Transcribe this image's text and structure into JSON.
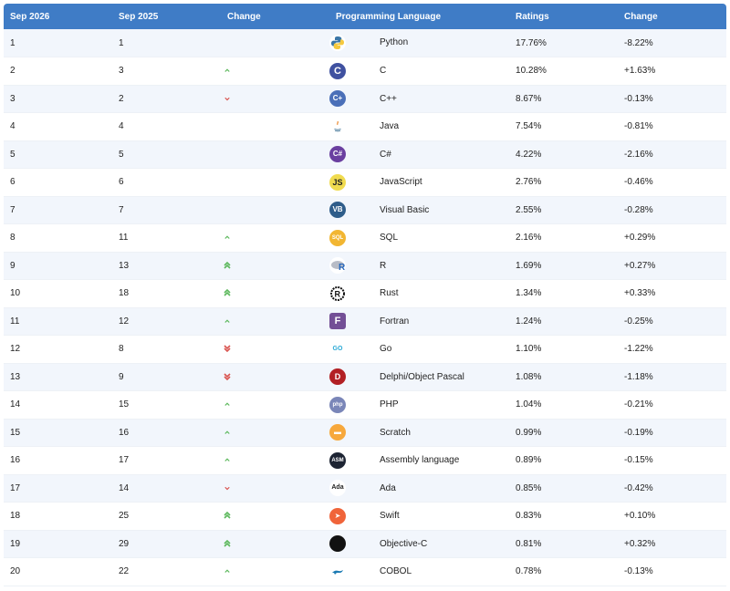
{
  "headers": [
    "Sep 2026",
    "Sep 2025",
    "Change",
    "Programming Language",
    "Ratings",
    "Change"
  ],
  "colors": {
    "header_bg": "#3f7cc6",
    "up": "#5cb85c",
    "down": "#d9534f"
  },
  "rows": [
    {
      "cur": "1",
      "prev": "1",
      "trend": "none",
      "lang": "Python",
      "icon": "python-icon",
      "rating": "17.76%",
      "delta": "-8.22%"
    },
    {
      "cur": "2",
      "prev": "3",
      "trend": "up",
      "lang": "C",
      "icon": "c-icon",
      "rating": "10.28%",
      "delta": "+1.63%"
    },
    {
      "cur": "3",
      "prev": "2",
      "trend": "down",
      "lang": "C++",
      "icon": "cpp-icon",
      "rating": "8.67%",
      "delta": "-0.13%"
    },
    {
      "cur": "4",
      "prev": "4",
      "trend": "none",
      "lang": "Java",
      "icon": "java-icon",
      "rating": "7.54%",
      "delta": "-0.81%"
    },
    {
      "cur": "5",
      "prev": "5",
      "trend": "none",
      "lang": "C#",
      "icon": "csharp-icon",
      "rating": "4.22%",
      "delta": "-2.16%"
    },
    {
      "cur": "6",
      "prev": "6",
      "trend": "none",
      "lang": "JavaScript",
      "icon": "javascript-icon",
      "rating": "2.76%",
      "delta": "-0.46%"
    },
    {
      "cur": "7",
      "prev": "7",
      "trend": "none",
      "lang": "Visual Basic",
      "icon": "visual-basic-icon",
      "rating": "2.55%",
      "delta": "-0.28%"
    },
    {
      "cur": "8",
      "prev": "11",
      "trend": "up",
      "lang": "SQL",
      "icon": "sql-icon",
      "rating": "2.16%",
      "delta": "+0.29%"
    },
    {
      "cur": "9",
      "prev": "13",
      "trend": "up2",
      "lang": "R",
      "icon": "r-icon",
      "rating": "1.69%",
      "delta": "+0.27%"
    },
    {
      "cur": "10",
      "prev": "18",
      "trend": "up2",
      "lang": "Rust",
      "icon": "rust-icon",
      "rating": "1.34%",
      "delta": "+0.33%"
    },
    {
      "cur": "11",
      "prev": "12",
      "trend": "up",
      "lang": "Fortran",
      "icon": "fortran-icon",
      "rating": "1.24%",
      "delta": "-0.25%"
    },
    {
      "cur": "12",
      "prev": "8",
      "trend": "down2",
      "lang": "Go",
      "icon": "go-icon",
      "rating": "1.10%",
      "delta": "-1.22%"
    },
    {
      "cur": "13",
      "prev": "9",
      "trend": "down2",
      "lang": "Delphi/Object Pascal",
      "icon": "delphi-icon",
      "rating": "1.08%",
      "delta": "-1.18%"
    },
    {
      "cur": "14",
      "prev": "15",
      "trend": "up",
      "lang": "PHP",
      "icon": "php-icon",
      "rating": "1.04%",
      "delta": "-0.21%"
    },
    {
      "cur": "15",
      "prev": "16",
      "trend": "up",
      "lang": "Scratch",
      "icon": "scratch-icon",
      "rating": "0.99%",
      "delta": "-0.19%"
    },
    {
      "cur": "16",
      "prev": "17",
      "trend": "up",
      "lang": "Assembly language",
      "icon": "assembly-icon",
      "rating": "0.89%",
      "delta": "-0.15%"
    },
    {
      "cur": "17",
      "prev": "14",
      "trend": "down",
      "lang": "Ada",
      "icon": "ada-icon",
      "rating": "0.85%",
      "delta": "-0.42%"
    },
    {
      "cur": "18",
      "prev": "25",
      "trend": "up2",
      "lang": "Swift",
      "icon": "swift-icon",
      "rating": "0.83%",
      "delta": "+0.10%"
    },
    {
      "cur": "19",
      "prev": "29",
      "trend": "up2",
      "lang": "Objective-C",
      "icon": "objective-c-icon",
      "rating": "0.81%",
      "delta": "+0.32%"
    },
    {
      "cur": "20",
      "prev": "22",
      "trend": "up",
      "lang": "COBOL",
      "icon": "cobol-icon",
      "rating": "0.78%",
      "delta": "-0.13%"
    }
  ]
}
